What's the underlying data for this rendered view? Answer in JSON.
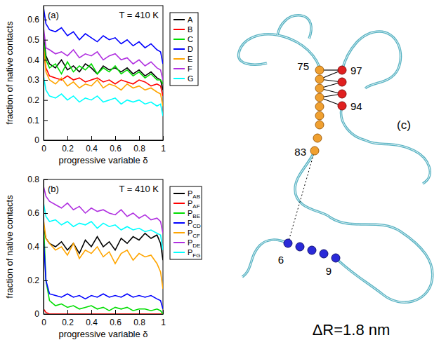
{
  "chart_data": [
    {
      "type": "line",
      "label": "(a)",
      "annotation": "T = 410 K",
      "xlabel": "progressive variable δ",
      "ylabel": "fraction of native contacts",
      "xlim": [
        0,
        1
      ],
      "xticks": [
        0,
        0.2,
        0.4,
        0.6,
        0.8,
        1
      ],
      "ylim": [
        0,
        0.67
      ],
      "yticks": [
        0,
        0.1,
        0.2,
        0.3,
        0.4,
        0.5,
        0.6
      ],
      "legend": "right",
      "x": [
        0,
        0.02,
        0.05,
        0.1,
        0.15,
        0.2,
        0.25,
        0.3,
        0.35,
        0.4,
        0.45,
        0.5,
        0.55,
        0.6,
        0.65,
        0.7,
        0.75,
        0.8,
        0.85,
        0.9,
        0.95,
        0.98,
        1
      ],
      "series": [
        {
          "name": "A",
          "color": "#000000",
          "values": [
            0.52,
            0.42,
            0.38,
            0.36,
            0.4,
            0.35,
            0.37,
            0.34,
            0.38,
            0.36,
            0.33,
            0.37,
            0.35,
            0.36,
            0.34,
            0.36,
            0.33,
            0.35,
            0.32,
            0.34,
            0.31,
            0.3,
            0.25
          ]
        },
        {
          "name": "B",
          "color": "#ff0000",
          "values": [
            0.46,
            0.36,
            0.32,
            0.31,
            0.3,
            0.32,
            0.3,
            0.31,
            0.29,
            0.3,
            0.31,
            0.29,
            0.3,
            0.28,
            0.3,
            0.29,
            0.28,
            0.3,
            0.29,
            0.27,
            0.28,
            0.27,
            0.22
          ]
        },
        {
          "name": "C",
          "color": "#00dd00",
          "values": [
            0.5,
            0.4,
            0.36,
            0.38,
            0.33,
            0.39,
            0.34,
            0.37,
            0.35,
            0.38,
            0.33,
            0.36,
            0.34,
            0.37,
            0.33,
            0.35,
            0.32,
            0.34,
            0.31,
            0.33,
            0.3,
            0.3,
            0.28
          ]
        },
        {
          "name": "D",
          "color": "#0000ff",
          "values": [
            0.66,
            0.58,
            0.55,
            0.54,
            0.56,
            0.52,
            0.54,
            0.5,
            0.53,
            0.51,
            0.49,
            0.52,
            0.5,
            0.51,
            0.48,
            0.5,
            0.47,
            0.49,
            0.46,
            0.48,
            0.45,
            0.44,
            0.38
          ]
        },
        {
          "name": "E",
          "color": "#ffa500",
          "values": [
            0.47,
            0.34,
            0.3,
            0.28,
            0.31,
            0.27,
            0.29,
            0.26,
            0.28,
            0.27,
            0.3,
            0.26,
            0.28,
            0.27,
            0.25,
            0.28,
            0.26,
            0.27,
            0.25,
            0.26,
            0.24,
            0.23,
            0.17
          ]
        },
        {
          "name": "F",
          "color": "#b030e0",
          "values": [
            0.56,
            0.46,
            0.45,
            0.43,
            0.44,
            0.42,
            0.45,
            0.41,
            0.43,
            0.42,
            0.44,
            0.4,
            0.42,
            0.43,
            0.4,
            0.41,
            0.38,
            0.4,
            0.37,
            0.39,
            0.36,
            0.35,
            0.3
          ]
        },
        {
          "name": "G",
          "color": "#00ffff",
          "values": [
            0.32,
            0.25,
            0.22,
            0.21,
            0.23,
            0.2,
            0.22,
            0.19,
            0.21,
            0.2,
            0.22,
            0.19,
            0.2,
            0.21,
            0.18,
            0.2,
            0.19,
            0.2,
            0.18,
            0.19,
            0.17,
            0.18,
            0.12
          ]
        }
      ]
    },
    {
      "type": "line",
      "label": "(b)",
      "annotation": "T = 410 K",
      "xlabel": "progressive variable δ",
      "ylabel": "fraction of native contacts",
      "xlim": [
        0,
        1
      ],
      "xticks": [
        0,
        0.2,
        0.4,
        0.6,
        0.8,
        1
      ],
      "ylim": [
        0,
        0.8
      ],
      "yticks": [
        0,
        0.2,
        0.4,
        0.6,
        0.8
      ],
      "legend": "right",
      "x": [
        0,
        0.02,
        0.05,
        0.1,
        0.15,
        0.2,
        0.25,
        0.3,
        0.35,
        0.4,
        0.45,
        0.5,
        0.55,
        0.6,
        0.65,
        0.7,
        0.75,
        0.8,
        0.85,
        0.9,
        0.95,
        0.98,
        1
      ],
      "series": [
        {
          "name": "PAB",
          "color": "#000000",
          "values": [
            0.52,
            0.45,
            0.42,
            0.4,
            0.43,
            0.38,
            0.42,
            0.36,
            0.44,
            0.4,
            0.46,
            0.4,
            0.43,
            0.38,
            0.45,
            0.42,
            0.46,
            0.44,
            0.48,
            0.45,
            0.47,
            0.42,
            0.32
          ]
        },
        {
          "name": "PAF",
          "color": "#ff0000",
          "values": [
            0.03,
            0.01,
            0,
            0,
            0,
            0,
            0,
            0,
            0,
            0,
            0,
            0,
            0,
            0,
            0,
            0,
            0,
            0,
            0,
            0,
            0,
            0,
            0
          ]
        },
        {
          "name": "PBE",
          "color": "#00dd00",
          "values": [
            0.55,
            0.2,
            0.08,
            0.05,
            0.06,
            0.04,
            0.05,
            0.03,
            0.04,
            0.05,
            0.03,
            0.04,
            0.02,
            0.04,
            0.03,
            0.04,
            0.02,
            0.03,
            0.03,
            0.02,
            0.03,
            0.02,
            0
          ]
        },
        {
          "name": "PCD",
          "color": "#0000ff",
          "values": [
            0.45,
            0.2,
            0.12,
            0.11,
            0.1,
            0.12,
            0.1,
            0.11,
            0.09,
            0.11,
            0.1,
            0.12,
            0.1,
            0.11,
            0.1,
            0.12,
            0.1,
            0.11,
            0.1,
            0.11,
            0.09,
            0.08,
            0.03
          ]
        },
        {
          "name": "PCF",
          "color": "#ffa500",
          "values": [
            0.56,
            0.45,
            0.42,
            0.38,
            0.4,
            0.35,
            0.42,
            0.33,
            0.38,
            0.36,
            0.4,
            0.34,
            0.37,
            0.3,
            0.36,
            0.38,
            0.32,
            0.36,
            0.34,
            0.35,
            0.3,
            0.25,
            0.15
          ]
        },
        {
          "name": "PDE",
          "color": "#b030e0",
          "values": [
            0.76,
            0.7,
            0.67,
            0.65,
            0.63,
            0.66,
            0.62,
            0.64,
            0.6,
            0.63,
            0.61,
            0.62,
            0.6,
            0.59,
            0.62,
            0.58,
            0.6,
            0.57,
            0.59,
            0.56,
            0.57,
            0.55,
            0.48
          ]
        },
        {
          "name": "PFG",
          "color": "#00ffff",
          "values": [
            0.66,
            0.58,
            0.55,
            0.56,
            0.53,
            0.55,
            0.52,
            0.54,
            0.53,
            0.55,
            0.51,
            0.54,
            0.52,
            0.53,
            0.5,
            0.52,
            0.5,
            0.51,
            0.49,
            0.5,
            0.48,
            0.47,
            0.38
          ]
        }
      ]
    }
  ],
  "diagram": {
    "label": "(c)",
    "residue_labels": [
      "75",
      "97",
      "94",
      "83",
      "6",
      "9"
    ],
    "caption": "ΔR=1.8 nm"
  }
}
